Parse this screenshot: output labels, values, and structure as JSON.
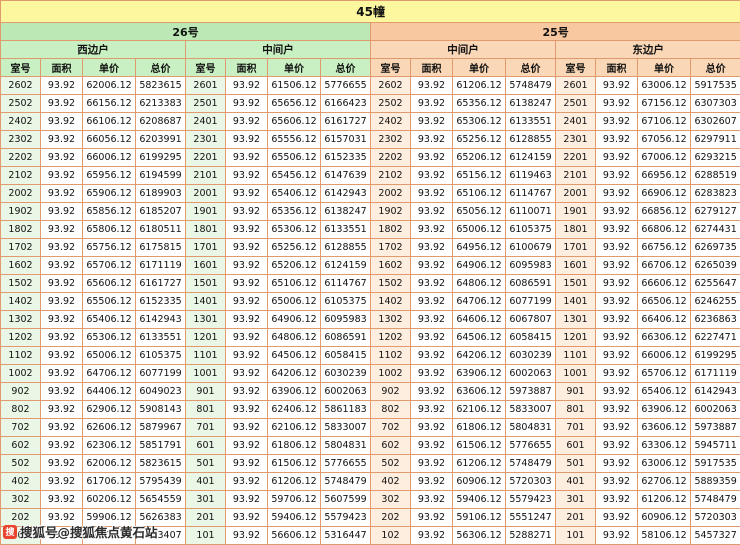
{
  "title": "45幢",
  "watermark": "搜狐号@搜狐焦点黄石站",
  "columns": [
    "室号",
    "面积",
    "单价",
    "总价"
  ],
  "groups": [
    {
      "building": "26号",
      "sections": [
        "西边户",
        "中间户"
      ]
    },
    {
      "building": "25号",
      "sections": [
        "中间户",
        "东边户"
      ]
    }
  ],
  "colors": {
    "title_bg": "#FDF8A0",
    "green_head": "#BCE8B5",
    "green_sub": "#C9F0C2",
    "green_tint": "#EAF7E6",
    "peach_head": "#F8C9A0",
    "peach_sub": "#FAD7B6",
    "peach_tint": "#FDEEDF",
    "border": "#E09A6E"
  },
  "rows": [
    [
      "2602",
      "93.92",
      "62006.12",
      "5823615",
      "2601",
      "93.92",
      "61506.12",
      "5776655",
      "2602",
      "93.92",
      "61206.12",
      "5748479",
      "2601",
      "93.92",
      "63006.12",
      "5917535"
    ],
    [
      "2502",
      "93.92",
      "66156.12",
      "6213383",
      "2501",
      "93.92",
      "65656.12",
      "6166423",
      "2502",
      "93.92",
      "65356.12",
      "6138247",
      "2501",
      "93.92",
      "67156.12",
      "6307303"
    ],
    [
      "2402",
      "93.92",
      "66106.12",
      "6208687",
      "2401",
      "93.92",
      "65606.12",
      "6161727",
      "2402",
      "93.92",
      "65306.12",
      "6133551",
      "2401",
      "93.92",
      "67106.12",
      "6302607"
    ],
    [
      "2302",
      "93.92",
      "66056.12",
      "6203991",
      "2301",
      "93.92",
      "65556.12",
      "6157031",
      "2302",
      "93.92",
      "65256.12",
      "6128855",
      "2301",
      "93.92",
      "67056.12",
      "6297911"
    ],
    [
      "2202",
      "93.92",
      "66006.12",
      "6199295",
      "2201",
      "93.92",
      "65506.12",
      "6152335",
      "2202",
      "93.92",
      "65206.12",
      "6124159",
      "2201",
      "93.92",
      "67006.12",
      "6293215"
    ],
    [
      "2102",
      "93.92",
      "65956.12",
      "6194599",
      "2101",
      "93.92",
      "65456.12",
      "6147639",
      "2102",
      "93.92",
      "65156.12",
      "6119463",
      "2101",
      "93.92",
      "66956.12",
      "6288519"
    ],
    [
      "2002",
      "93.92",
      "65906.12",
      "6189903",
      "2001",
      "93.92",
      "65406.12",
      "6142943",
      "2002",
      "93.92",
      "65106.12",
      "6114767",
      "2001",
      "93.92",
      "66906.12",
      "6283823"
    ],
    [
      "1902",
      "93.92",
      "65856.12",
      "6185207",
      "1901",
      "93.92",
      "65356.12",
      "6138247",
      "1902",
      "93.92",
      "65056.12",
      "6110071",
      "1901",
      "93.92",
      "66856.12",
      "6279127"
    ],
    [
      "1802",
      "93.92",
      "65806.12",
      "6180511",
      "1801",
      "93.92",
      "65306.12",
      "6133551",
      "1802",
      "93.92",
      "65006.12",
      "6105375",
      "1801",
      "93.92",
      "66806.12",
      "6274431"
    ],
    [
      "1702",
      "93.92",
      "65756.12",
      "6175815",
      "1701",
      "93.92",
      "65256.12",
      "6128855",
      "1702",
      "93.92",
      "64956.12",
      "6100679",
      "1701",
      "93.92",
      "66756.12",
      "6269735"
    ],
    [
      "1602",
      "93.92",
      "65706.12",
      "6171119",
      "1601",
      "93.92",
      "65206.12",
      "6124159",
      "1602",
      "93.92",
      "64906.12",
      "6095983",
      "1601",
      "93.92",
      "66706.12",
      "6265039"
    ],
    [
      "1502",
      "93.92",
      "65606.12",
      "6161727",
      "1501",
      "93.92",
      "65106.12",
      "6114767",
      "1502",
      "93.92",
      "64806.12",
      "6086591",
      "1501",
      "93.92",
      "66606.12",
      "6255647"
    ],
    [
      "1402",
      "93.92",
      "65506.12",
      "6152335",
      "1401",
      "93.92",
      "65006.12",
      "6105375",
      "1402",
      "93.92",
      "64706.12",
      "6077199",
      "1401",
      "93.92",
      "66506.12",
      "6246255"
    ],
    [
      "1302",
      "93.92",
      "65406.12",
      "6142943",
      "1301",
      "93.92",
      "64906.12",
      "6095983",
      "1302",
      "93.92",
      "64606.12",
      "6067807",
      "1301",
      "93.92",
      "66406.12",
      "6236863"
    ],
    [
      "1202",
      "93.92",
      "65306.12",
      "6133551",
      "1201",
      "93.92",
      "64806.12",
      "6086591",
      "1202",
      "93.92",
      "64506.12",
      "6058415",
      "1201",
      "93.92",
      "66306.12",
      "6227471"
    ],
    [
      "1102",
      "93.92",
      "65006.12",
      "6105375",
      "1101",
      "93.92",
      "64506.12",
      "6058415",
      "1102",
      "93.92",
      "64206.12",
      "6030239",
      "1101",
      "93.92",
      "66006.12",
      "6199295"
    ],
    [
      "1002",
      "93.92",
      "64706.12",
      "6077199",
      "1001",
      "93.92",
      "64206.12",
      "6030239",
      "1002",
      "93.92",
      "63906.12",
      "6002063",
      "1001",
      "93.92",
      "65706.12",
      "6171119"
    ],
    [
      "902",
      "93.92",
      "64406.12",
      "6049023",
      "901",
      "93.92",
      "63906.12",
      "6002063",
      "902",
      "93.92",
      "63606.12",
      "5973887",
      "901",
      "93.92",
      "65406.12",
      "6142943"
    ],
    [
      "802",
      "93.92",
      "62906.12",
      "5908143",
      "801",
      "93.92",
      "62406.12",
      "5861183",
      "802",
      "93.92",
      "62106.12",
      "5833007",
      "801",
      "93.92",
      "63906.12",
      "6002063"
    ],
    [
      "702",
      "93.92",
      "62606.12",
      "5879967",
      "701",
      "93.92",
      "62106.12",
      "5833007",
      "702",
      "93.92",
      "61806.12",
      "5804831",
      "701",
      "93.92",
      "63606.12",
      "5973887"
    ],
    [
      "602",
      "93.92",
      "62306.12",
      "5851791",
      "601",
      "93.92",
      "61806.12",
      "5804831",
      "602",
      "93.92",
      "61506.12",
      "5776655",
      "601",
      "93.92",
      "63306.12",
      "5945711"
    ],
    [
      "502",
      "93.92",
      "62006.12",
      "5823615",
      "501",
      "93.92",
      "61506.12",
      "5776655",
      "502",
      "93.92",
      "61206.12",
      "5748479",
      "501",
      "93.92",
      "63006.12",
      "5917535"
    ],
    [
      "402",
      "93.92",
      "61706.12",
      "5795439",
      "401",
      "93.92",
      "61206.12",
      "5748479",
      "402",
      "93.92",
      "60906.12",
      "5720303",
      "401",
      "93.92",
      "62706.12",
      "5889359"
    ],
    [
      "302",
      "93.92",
      "60206.12",
      "5654559",
      "301",
      "93.92",
      "59706.12",
      "5607599",
      "302",
      "93.92",
      "59406.12",
      "5579423",
      "301",
      "93.92",
      "61206.12",
      "5748479"
    ],
    [
      "202",
      "93.92",
      "59906.12",
      "5626383",
      "201",
      "93.92",
      "59406.12",
      "5579423",
      "202",
      "93.92",
      "59106.12",
      "5551247",
      "201",
      "93.92",
      "60906.12",
      "5720303"
    ],
    [
      "102",
      "93.92",
      "57106.12",
      "5363407",
      "101",
      "93.92",
      "56606.12",
      "5316447",
      "102",
      "93.92",
      "56306.12",
      "5288271",
      "101",
      "93.92",
      "58106.12",
      "5457327"
    ]
  ]
}
